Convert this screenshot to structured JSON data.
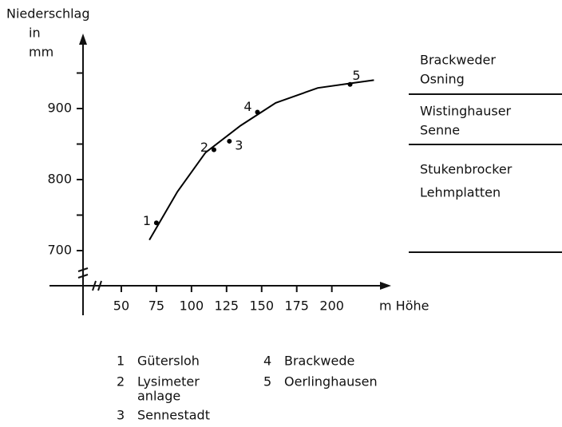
{
  "chart_data": {
    "type": "scatter",
    "y_label": [
      "Niederschlag",
      "in",
      "mm"
    ],
    "x_label": "m Höhe",
    "xlim": [
      25,
      240
    ],
    "ylim": [
      650,
      1000
    ],
    "xticks": [
      50,
      75,
      100,
      125,
      150,
      175,
      200
    ],
    "yticks": [
      700,
      800,
      900
    ],
    "yminor": [
      750,
      850,
      950
    ],
    "x": [
      75,
      116,
      127,
      147,
      213
    ],
    "values": [
      739,
      842,
      854,
      895,
      934
    ],
    "point_labels": [
      "1",
      "2",
      "3",
      "4",
      "5"
    ],
    "color": "#000000",
    "curve": {
      "x": [
        70,
        90,
        110,
        135,
        160,
        190,
        215,
        230
      ],
      "values": [
        715,
        783,
        838,
        876,
        908,
        929,
        936,
        940
      ]
    }
  },
  "zones": [
    [
      "Brackweder",
      "Osning"
    ],
    [
      "Wistinghauser",
      "Senne"
    ],
    [
      "Stukenbrocker",
      "Lehmplatten"
    ]
  ],
  "legend": [
    {
      "number": "1",
      "lines": [
        "Gütersloh"
      ]
    },
    {
      "number": "2",
      "lines": [
        "Lysimeter",
        "anlage"
      ]
    },
    {
      "number": "3",
      "lines": [
        "Sennestadt"
      ]
    },
    {
      "number": "4",
      "lines": [
        "Brackwede"
      ]
    },
    {
      "number": "5",
      "lines": [
        "Oerlinghausen"
      ]
    }
  ]
}
